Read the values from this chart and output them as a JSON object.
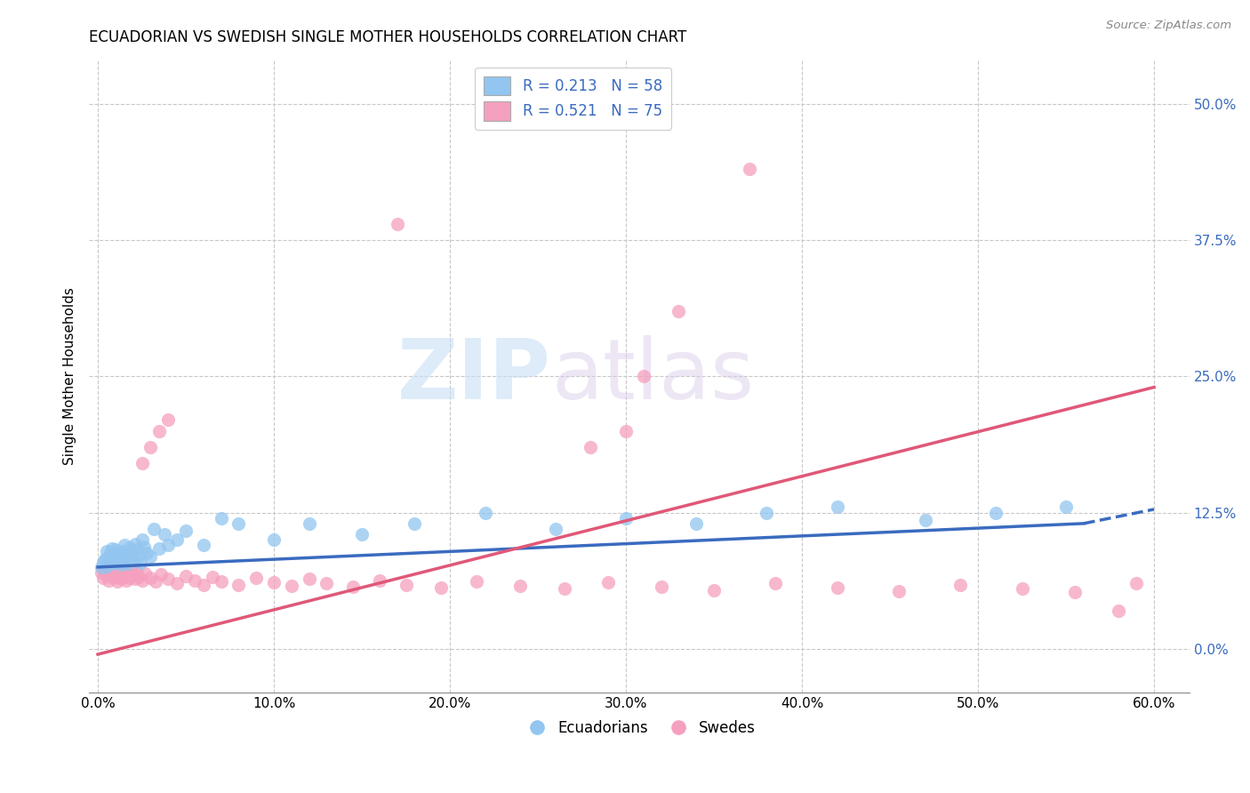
{
  "title": "ECUADORIAN VS SWEDISH SINGLE MOTHER HOUSEHOLDS CORRELATION CHART",
  "source": "Source: ZipAtlas.com",
  "ylabel": "Single Mother Households",
  "xlabel_ticks": [
    "0.0%",
    "10.0%",
    "20.0%",
    "30.0%",
    "40.0%",
    "50.0%",
    "60.0%"
  ],
  "xlabel_vals": [
    0.0,
    0.1,
    0.2,
    0.3,
    0.4,
    0.5,
    0.6
  ],
  "ylabel_ticks": [
    "0.0%",
    "12.5%",
    "25.0%",
    "37.5%",
    "50.0%"
  ],
  "ylabel_vals": [
    0.0,
    0.125,
    0.25,
    0.375,
    0.5
  ],
  "xlim": [
    -0.005,
    0.62
  ],
  "ylim": [
    -0.04,
    0.54
  ],
  "r_blue": 0.213,
  "n_blue": 58,
  "r_pink": 0.521,
  "n_pink": 75,
  "legend_labels": [
    "Ecuadorians",
    "Swedes"
  ],
  "color_blue": "#92c5f0",
  "color_pink": "#f5a0be",
  "color_blue_dark": "#3a6bbf",
  "color_pink_dark": "#e05878",
  "watermark_zip": "ZIP",
  "watermark_atlas": "atlas",
  "blue_scatter_x": [
    0.002,
    0.003,
    0.004,
    0.005,
    0.005,
    0.006,
    0.007,
    0.007,
    0.008,
    0.008,
    0.009,
    0.009,
    0.01,
    0.01,
    0.011,
    0.011,
    0.012,
    0.012,
    0.013,
    0.013,
    0.014,
    0.015,
    0.015,
    0.016,
    0.017,
    0.018,
    0.019,
    0.02,
    0.021,
    0.022,
    0.023,
    0.024,
    0.025,
    0.026,
    0.028,
    0.03,
    0.032,
    0.035,
    0.038,
    0.04,
    0.045,
    0.05,
    0.06,
    0.07,
    0.08,
    0.1,
    0.12,
    0.15,
    0.18,
    0.22,
    0.26,
    0.3,
    0.34,
    0.38,
    0.42,
    0.47,
    0.51,
    0.55
  ],
  "blue_scatter_y": [
    0.075,
    0.08,
    0.082,
    0.076,
    0.09,
    0.083,
    0.078,
    0.088,
    0.085,
    0.092,
    0.08,
    0.087,
    0.083,
    0.091,
    0.079,
    0.086,
    0.082,
    0.089,
    0.077,
    0.085,
    0.09,
    0.083,
    0.095,
    0.088,
    0.078,
    0.093,
    0.087,
    0.082,
    0.096,
    0.091,
    0.085,
    0.079,
    0.1,
    0.094,
    0.088,
    0.085,
    0.11,
    0.092,
    0.105,
    0.095,
    0.1,
    0.108,
    0.095,
    0.12,
    0.115,
    0.1,
    0.115,
    0.105,
    0.115,
    0.125,
    0.11,
    0.12,
    0.115,
    0.125,
    0.13,
    0.118,
    0.125,
    0.13
  ],
  "pink_scatter_x": [
    0.002,
    0.003,
    0.004,
    0.005,
    0.005,
    0.006,
    0.007,
    0.007,
    0.008,
    0.008,
    0.009,
    0.009,
    0.01,
    0.01,
    0.011,
    0.011,
    0.012,
    0.012,
    0.013,
    0.014,
    0.015,
    0.016,
    0.017,
    0.018,
    0.019,
    0.02,
    0.021,
    0.022,
    0.023,
    0.025,
    0.027,
    0.03,
    0.033,
    0.036,
    0.04,
    0.045,
    0.05,
    0.055,
    0.06,
    0.065,
    0.07,
    0.08,
    0.09,
    0.1,
    0.11,
    0.12,
    0.13,
    0.145,
    0.16,
    0.175,
    0.195,
    0.215,
    0.24,
    0.265,
    0.29,
    0.32,
    0.35,
    0.385,
    0.42,
    0.455,
    0.49,
    0.525,
    0.555,
    0.58,
    0.025,
    0.03,
    0.035,
    0.04,
    0.28,
    0.3,
    0.17,
    0.31,
    0.33,
    0.37,
    0.59
  ],
  "pink_scatter_y": [
    0.07,
    0.065,
    0.072,
    0.068,
    0.075,
    0.063,
    0.069,
    0.074,
    0.067,
    0.072,
    0.065,
    0.071,
    0.068,
    0.073,
    0.062,
    0.069,
    0.066,
    0.071,
    0.064,
    0.07,
    0.067,
    0.063,
    0.069,
    0.065,
    0.071,
    0.068,
    0.064,
    0.07,
    0.066,
    0.063,
    0.069,
    0.065,
    0.062,
    0.068,
    0.064,
    0.06,
    0.067,
    0.063,
    0.059,
    0.066,
    0.062,
    0.059,
    0.065,
    0.061,
    0.058,
    0.064,
    0.06,
    0.057,
    0.063,
    0.059,
    0.056,
    0.062,
    0.058,
    0.055,
    0.061,
    0.057,
    0.054,
    0.06,
    0.056,
    0.053,
    0.059,
    0.055,
    0.052,
    0.035,
    0.17,
    0.185,
    0.2,
    0.21,
    0.185,
    0.2,
    0.39,
    0.25,
    0.31,
    0.44,
    0.06
  ],
  "blue_line_solid_end": 0.56,
  "blue_line_start_y": 0.075,
  "blue_line_end_y_solid": 0.115,
  "blue_line_end_y_dash": 0.128,
  "pink_line_start_y": -0.005,
  "pink_line_end_y": 0.24
}
